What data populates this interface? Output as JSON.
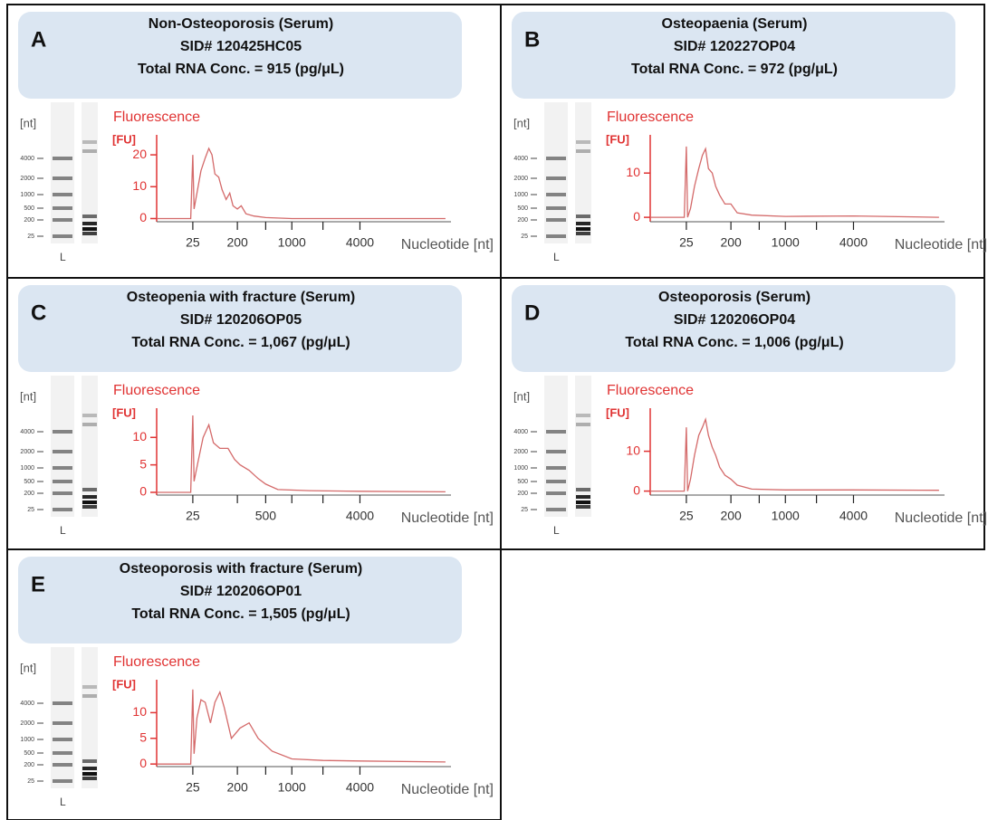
{
  "chart_data": [
    {
      "type": "line",
      "panel": "A",
      "title": "Non-Osteoporosis (Serum)",
      "subtitle": [
        "SID# 120425HC05",
        "Total RNA Conc. = 915 (pg/μL)"
      ],
      "gel_unit": "[nt]",
      "gel_ladder": [
        4000,
        2000,
        1000,
        500,
        200,
        25
      ],
      "gel_lane": "L",
      "ylabel_title": "Fluorescence",
      "ylabel": "[FU]",
      "xlabel": "Nucleotide [nt]",
      "color": "#d46a6a",
      "x": [
        1,
        22,
        25,
        27,
        32,
        40,
        50,
        60,
        70,
        80,
        95,
        110,
        130,
        150,
        170,
        200,
        230,
        270,
        350,
        500,
        1000,
        4000,
        14000
      ],
      "values": [
        0,
        0,
        20,
        3,
        8,
        15,
        19,
        22,
        20,
        14,
        13,
        9,
        6,
        8,
        4,
        3,
        4,
        1.5,
        0.8,
        0.3,
        0,
        0,
        0
      ],
      "xlim": [
        1,
        15000
      ],
      "ylim": [
        -1,
        24
      ],
      "yticks": [
        0,
        10,
        20
      ],
      "xticks": [
        25,
        200,
        {
          "value": 500,
          "label": null
        },
        1000,
        {
          "value": 2000,
          "label": null
        },
        4000
      ]
    },
    {
      "type": "line",
      "panel": "B",
      "title": "Osteopaenia (Serum)",
      "subtitle": [
        "SID# 120227OP04",
        "Total RNA Conc. = 972 (pg/μL)"
      ],
      "gel_unit": "[nt]",
      "gel_ladder": [
        4000,
        2000,
        1000,
        500,
        200,
        25
      ],
      "gel_lane": "L",
      "ylabel_title": "Fluorescence",
      "ylabel": "[FU]",
      "xlabel": "Nucleotide [nt]",
      "color": "#d46a6a",
      "x": [
        1,
        22,
        25,
        27,
        32,
        40,
        50,
        60,
        70,
        80,
        95,
        110,
        130,
        160,
        200,
        250,
        400,
        1000,
        4000,
        14000
      ],
      "values": [
        0,
        0,
        16,
        0,
        2,
        7,
        11,
        14,
        15.5,
        11,
        10,
        7,
        5,
        3,
        3,
        1,
        0.5,
        0.2,
        0.3,
        0
      ],
      "xlim": [
        1,
        15000
      ],
      "ylim": [
        -1,
        17
      ],
      "yticks": [
        0,
        10
      ],
      "xticks": [
        25,
        200,
        {
          "value": 500,
          "label": null
        },
        1000,
        {
          "value": 2000,
          "label": null
        },
        4000
      ]
    },
    {
      "type": "line",
      "panel": "C",
      "title": "Osteopenia with fracture (Serum)",
      "subtitle": [
        "SID# 120206OP05",
        "Total RNA Conc. = 1,067 (pg/μL)"
      ],
      "gel_unit": "[nt]",
      "gel_ladder": [
        4000,
        2000,
        1000,
        500,
        200,
        25
      ],
      "gel_lane": "L",
      "ylabel_title": "Fluorescence",
      "ylabel": "[FU]",
      "xlabel": "Nucleotide [nt]",
      "color": "#d46a6a",
      "x": [
        1,
        22,
        25,
        27,
        35,
        45,
        60,
        75,
        100,
        140,
        180,
        220,
        300,
        400,
        500,
        700,
        1500,
        4000,
        14000
      ],
      "values": [
        0,
        0,
        14,
        2,
        6,
        10,
        12.3,
        9,
        8,
        8,
        6,
        5,
        4,
        2.5,
        1.5,
        0.5,
        0.3,
        0.2,
        0.1
      ],
      "xlim": [
        1,
        15000
      ],
      "ylim": [
        -0.5,
        14
      ],
      "yticks": [
        0,
        5,
        10
      ],
      "xticks": [
        25,
        {
          "value": 200,
          "label": null
        },
        500,
        {
          "value": 1000,
          "label": null
        },
        {
          "value": 2000,
          "label": null
        },
        4000
      ]
    },
    {
      "type": "line",
      "panel": "D",
      "title": "Osteoporosis (Serum)",
      "subtitle": [
        "SID# 120206OP04",
        "Total RNA Conc. = 1,006 (pg/μL)"
      ],
      "gel_unit": "[nt]",
      "gel_ladder": [
        4000,
        2000,
        1000,
        500,
        200,
        25
      ],
      "gel_lane": "L",
      "ylabel_title": "Fluorescence",
      "ylabel": "[FU]",
      "xlabel": "Nucleotide [nt]",
      "color": "#d46a6a",
      "x": [
        1,
        22,
        25,
        27,
        32,
        40,
        50,
        60,
        70,
        80,
        95,
        110,
        130,
        160,
        200,
        250,
        400,
        1000,
        4000,
        14000
      ],
      "values": [
        0,
        0,
        16,
        0,
        3,
        9,
        14,
        16,
        18,
        14,
        11,
        9,
        6,
        4,
        3,
        1.5,
        0.5,
        0.3,
        0.3,
        0.2
      ],
      "xlim": [
        1,
        15000
      ],
      "ylim": [
        -1,
        19
      ],
      "yticks": [
        0,
        10
      ],
      "xticks": [
        25,
        200,
        {
          "value": 500,
          "label": null
        },
        1000,
        {
          "value": 2000,
          "label": null
        },
        4000
      ]
    },
    {
      "type": "line",
      "panel": "E",
      "title": "Osteoporosis with fracture (Serum)",
      "subtitle": [
        "SID# 120206OP01",
        "Total RNA Conc. = 1,505 (pg/μL)"
      ],
      "gel_unit": "[nt]",
      "gel_ladder": [
        4000,
        2000,
        1000,
        500,
        200,
        25
      ],
      "gel_lane": "L",
      "ylabel_title": "Fluorescence",
      "ylabel": "[FU]",
      "xlabel": "Nucleotide [nt]",
      "color": "#d46a6a",
      "x": [
        1,
        22,
        25,
        27,
        32,
        40,
        50,
        65,
        80,
        100,
        120,
        160,
        220,
        300,
        400,
        600,
        1000,
        2000,
        4000,
        14000
      ],
      "values": [
        0,
        0,
        14.5,
        2,
        9,
        12.5,
        12,
        8,
        12,
        14,
        11,
        5,
        7,
        8,
        5,
        2.5,
        1,
        0.7,
        0.6,
        0.4
      ],
      "xlim": [
        1,
        15000
      ],
      "ylim": [
        -0.5,
        15
      ],
      "yticks": [
        0,
        5,
        10
      ],
      "xticks": [
        25,
        200,
        {
          "value": 500,
          "label": null
        },
        1000,
        {
          "value": 2000,
          "label": null
        },
        4000
      ]
    }
  ]
}
